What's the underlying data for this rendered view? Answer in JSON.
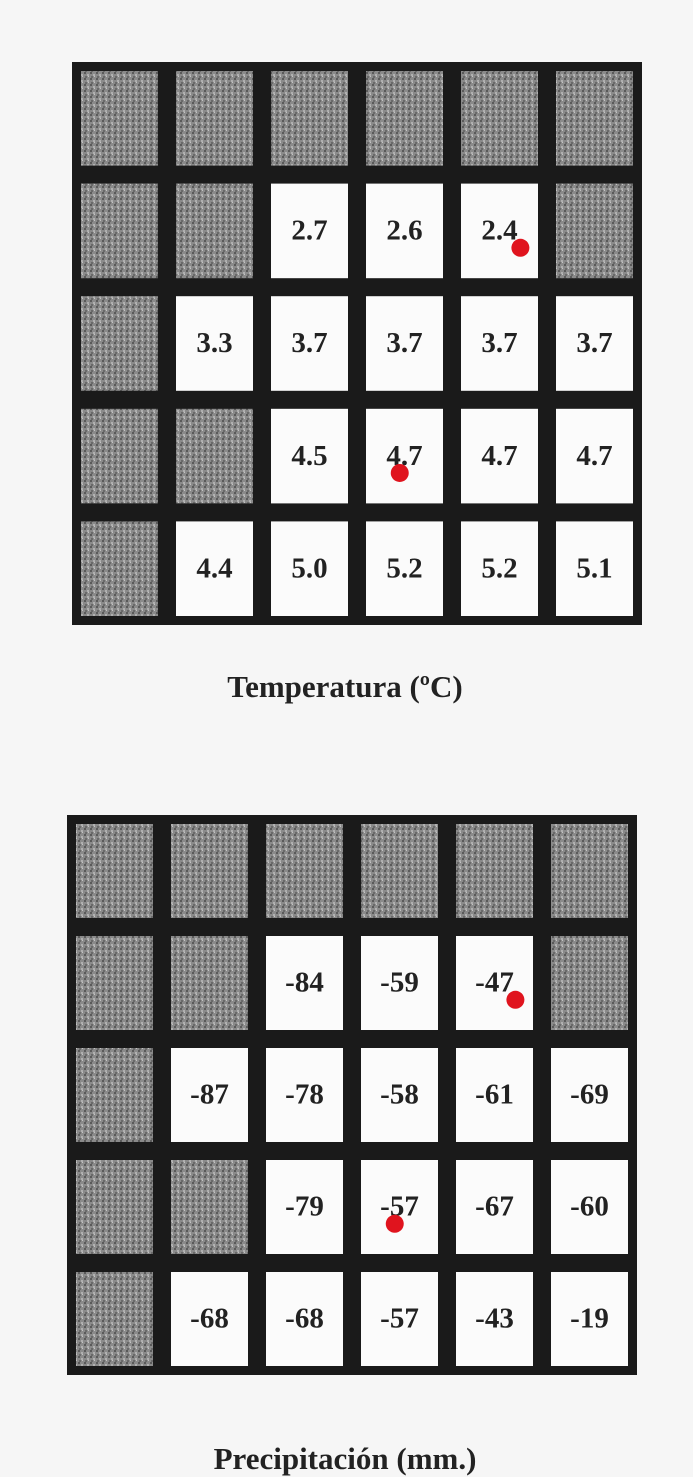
{
  "grids": [
    {
      "title": "Temperatura (ºC)",
      "rows": [
        [
          null,
          null,
          null,
          null,
          null,
          null
        ],
        [
          null,
          null,
          "2.7",
          "2.6",
          "2.4",
          null
        ],
        [
          null,
          "3.3",
          "3.7",
          "3.7",
          "3.7",
          "3.7"
        ],
        [
          null,
          null,
          "4.5",
          "4.7",
          "4.7",
          "4.7"
        ],
        [
          null,
          "4.4",
          "5.0",
          "5.2",
          "5.2",
          "5.1"
        ]
      ]
    },
    {
      "title": "Precipitación (mm.)",
      "rows": [
        [
          null,
          null,
          null,
          null,
          null,
          null
        ],
        [
          null,
          null,
          "-84",
          "-59",
          "-47",
          null
        ],
        [
          null,
          "-87",
          "-78",
          "-58",
          "-61",
          "-69"
        ],
        [
          null,
          null,
          "-79",
          "-57",
          "-67",
          "-60"
        ],
        [
          null,
          "-68",
          "-68",
          "-57",
          "-43",
          "-19"
        ]
      ]
    }
  ]
}
